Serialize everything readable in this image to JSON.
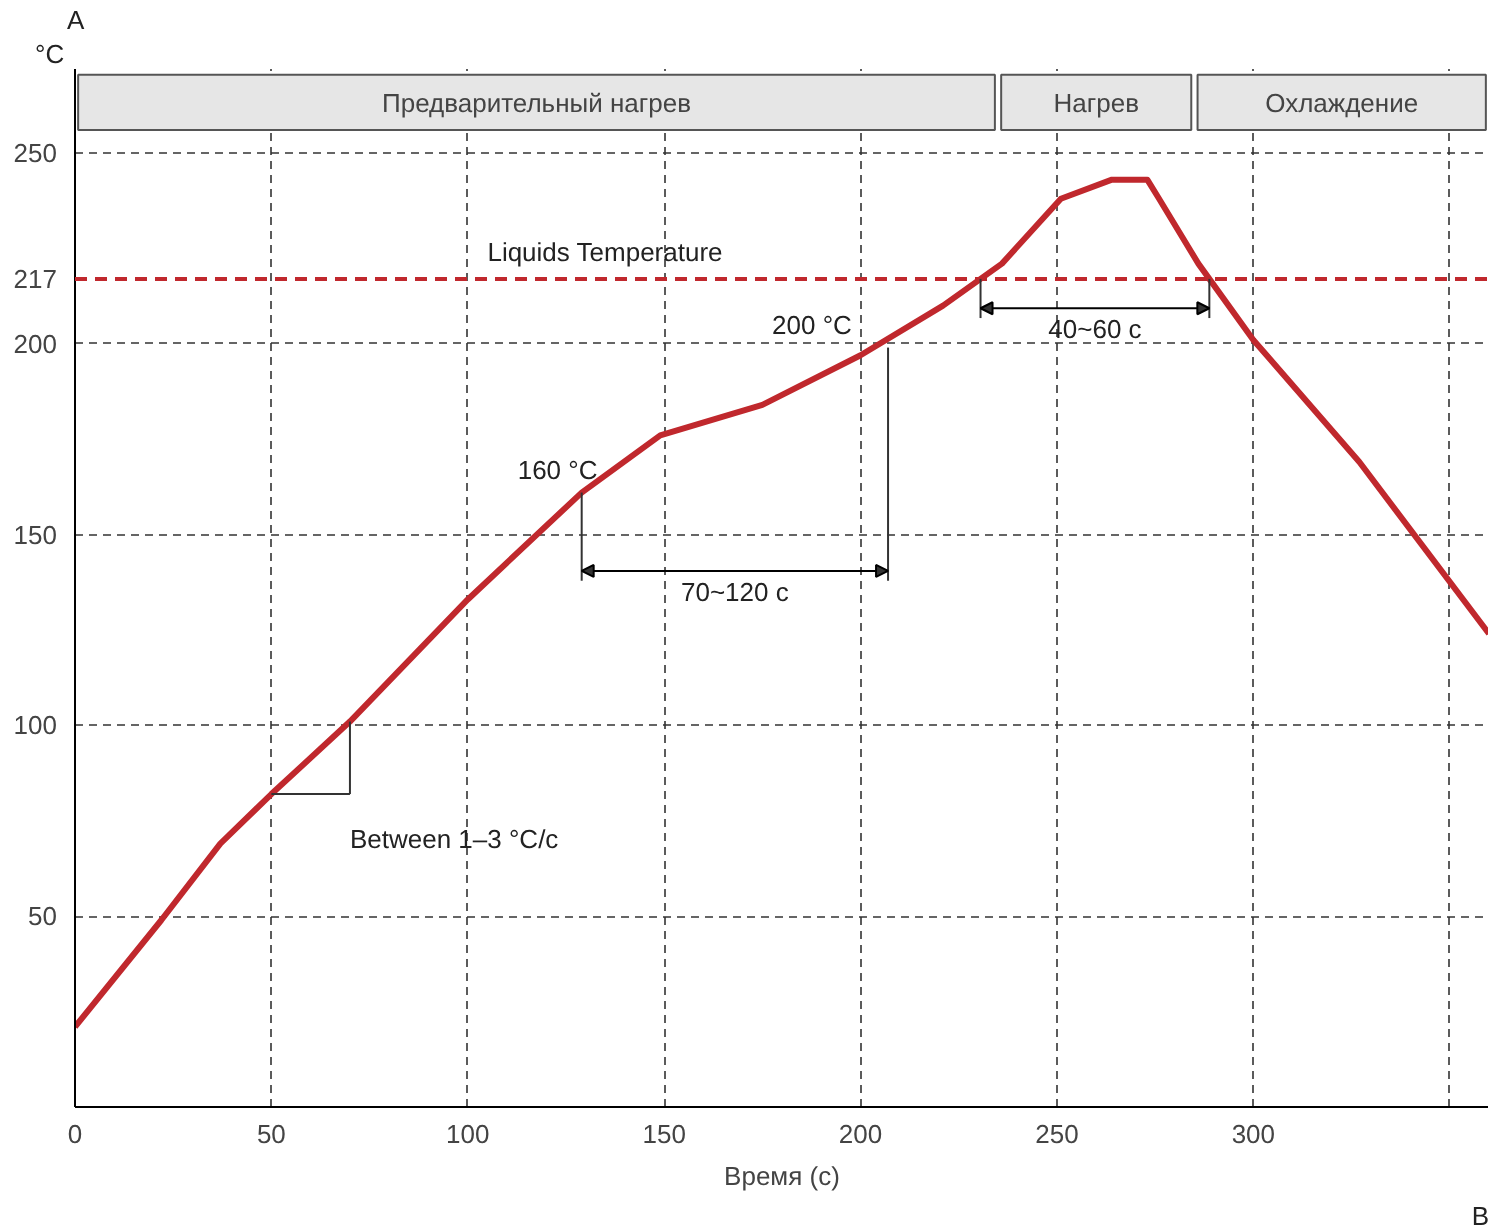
{
  "chart_data": {
    "type": "line",
    "xlabel": "Время (c)",
    "ylabel": "°C",
    "x": [
      0,
      22,
      37,
      50,
      70,
      100,
      129,
      149,
      175,
      200,
      221,
      236,
      251,
      264,
      273,
      276,
      286,
      300,
      327,
      360
    ],
    "series": [
      {
        "color": "#c0282d",
        "values": [
          21,
          49,
          69,
          82,
          101,
          133,
          161,
          176,
          184,
          197,
          210,
          221,
          238,
          243,
          243,
          238,
          221,
          201,
          169,
          124
        ]
      }
    ],
    "xlim": [
      0,
      360
    ],
    "ylim": [
      0,
      272
    ],
    "xticks": [
      0,
      50,
      100,
      150,
      200,
      250,
      300,
      {
        "value": 350,
        "label": null
      }
    ],
    "yticks": [
      50,
      100,
      150,
      200,
      217,
      250
    ],
    "grid": true,
    "marker": "none",
    "line_style": "solid",
    "ref_lines": [
      {
        "axis": "y",
        "value": 217,
        "label": "Liquids Temperature",
        "color": "#c0282d",
        "line_style": "dashed"
      }
    ],
    "bands": [
      {
        "axis": "x",
        "from": 0,
        "to": 235,
        "label": "Предварительный нагрев",
        "color": "#e6e6e6"
      },
      {
        "axis": "x",
        "from": 235,
        "to": 285,
        "label": "Нагрев",
        "color": "#e6e6e6"
      },
      {
        "axis": "x",
        "from": 285,
        "to": 360,
        "label": "Охлаждение",
        "color": "#e6e6e6"
      }
    ],
    "annotations": [
      {
        "text": "Between 1–3 °C/c",
        "x": 70,
        "y": 101
      },
      {
        "text": "160 °C",
        "x": 129,
        "y": 161
      },
      {
        "text": "200 °C",
        "x": 207,
        "y": 199
      },
      "70~120 c",
      "40~60 c",
      "A",
      "B"
    ]
  }
}
